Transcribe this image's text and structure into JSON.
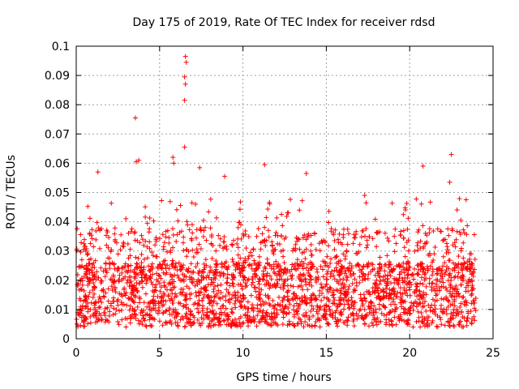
{
  "chart_data": {
    "type": "scatter",
    "title": "Day 175 of 2019, Rate Of TEC Index for receiver rdsd",
    "xlabel": "GPS time / hours",
    "ylabel": "ROTI / TECUs",
    "xlim": [
      0,
      25
    ],
    "ylim": [
      0,
      0.1
    ],
    "x_ticks": [
      "0",
      "5",
      "10",
      "15",
      "20",
      "25"
    ],
    "y_ticks": [
      "0",
      "0.01",
      "0.02",
      "0.03",
      "0.04",
      "0.05",
      "0.06",
      "0.07",
      "0.08",
      "0.09",
      "0.1"
    ],
    "grid": true,
    "marker": "+",
    "series": [
      {
        "name": "ROTI",
        "color": "#ff0000",
        "description_points": "dense band of ~0.005-0.03 TECU from 0 to 24 h; selected outliers listed",
        "outliers": [
          {
            "x": 3.55,
            "y": 0.0755
          },
          {
            "x": 6.55,
            "y": 0.0965
          },
          {
            "x": 6.6,
            "y": 0.0945
          },
          {
            "x": 6.5,
            "y": 0.0895
          },
          {
            "x": 6.55,
            "y": 0.087
          },
          {
            "x": 6.5,
            "y": 0.0815
          },
          {
            "x": 6.5,
            "y": 0.0655
          },
          {
            "x": 5.8,
            "y": 0.062
          },
          {
            "x": 5.85,
            "y": 0.06
          },
          {
            "x": 3.6,
            "y": 0.0605
          },
          {
            "x": 3.75,
            "y": 0.061
          },
          {
            "x": 22.5,
            "y": 0.063
          },
          {
            "x": 20.8,
            "y": 0.059
          },
          {
            "x": 11.3,
            "y": 0.0595
          },
          {
            "x": 8.9,
            "y": 0.0555
          },
          {
            "x": 13.8,
            "y": 0.0565
          },
          {
            "x": 1.3,
            "y": 0.057
          },
          {
            "x": 7.4,
            "y": 0.0585
          },
          {
            "x": 22.4,
            "y": 0.0535
          },
          {
            "x": 17.3,
            "y": 0.049
          }
        ]
      }
    ]
  }
}
